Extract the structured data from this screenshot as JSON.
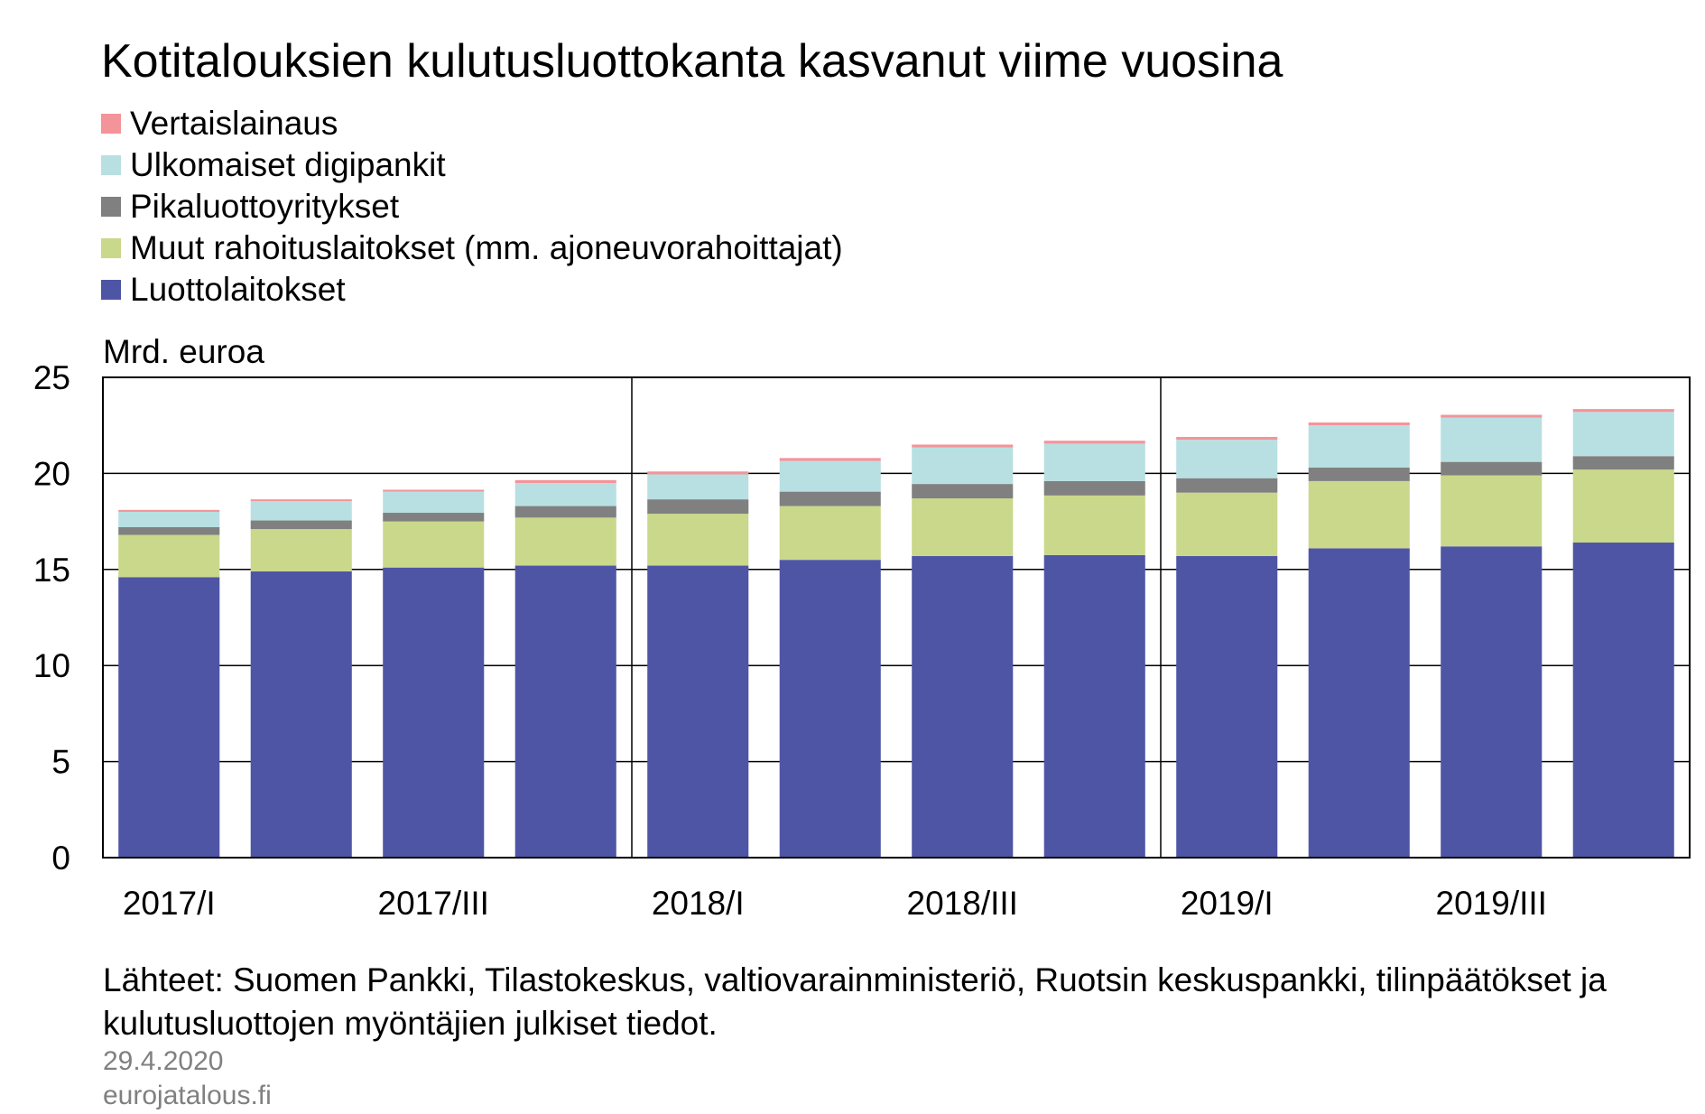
{
  "chart_data": {
    "type": "bar",
    "stacked": true,
    "title": "Kotitalouksien kulutusluottokanta kasvanut viime vuosina",
    "ylabel": "Mrd. euroa",
    "xlabel": "",
    "ylim": [
      0,
      25
    ],
    "yticks": [
      0,
      5,
      10,
      15,
      20,
      25
    ],
    "grid": "horizontal",
    "legend_placement": "top-left",
    "categories": [
      "2017/I",
      "2017/II",
      "2017/III",
      "2017/IV",
      "2018/I",
      "2018/II",
      "2018/III",
      "2018/IV",
      "2019/I",
      "2019/II",
      "2019/III",
      "2019/IV"
    ],
    "x_tick_labels": [
      "2017/I",
      "2017/III",
      "2018/I",
      "2018/III",
      "2019/I",
      "2019/III"
    ],
    "series": [
      {
        "name": "Luottolaitokset",
        "color": "#4f55a5",
        "values": [
          14.6,
          14.9,
          15.1,
          15.2,
          15.2,
          15.5,
          15.7,
          15.75,
          15.7,
          16.1,
          16.2,
          16.4
        ]
      },
      {
        "name": "Muut rahoituslaitokset (mm. ajoneuvorahoittajat)",
        "color": "#c9d88a",
        "values": [
          2.2,
          2.2,
          2.4,
          2.5,
          2.7,
          2.8,
          3.0,
          3.1,
          3.3,
          3.5,
          3.7,
          3.8
        ]
      },
      {
        "name": "Pikaluottoyritykset",
        "color": "#808080",
        "values": [
          0.4,
          0.45,
          0.45,
          0.6,
          0.75,
          0.75,
          0.75,
          0.75,
          0.75,
          0.7,
          0.7,
          0.7
        ]
      },
      {
        "name": "Ulkomaiset digipankit",
        "color": "#b8e0e2",
        "values": [
          0.8,
          1.0,
          1.1,
          1.2,
          1.3,
          1.6,
          1.9,
          1.95,
          2.0,
          2.2,
          2.3,
          2.3
        ]
      },
      {
        "name": "Vertaislainaus",
        "color": "#f3949a",
        "values": [
          0.1,
          0.1,
          0.1,
          0.15,
          0.15,
          0.15,
          0.15,
          0.15,
          0.15,
          0.15,
          0.15,
          0.15
        ]
      }
    ],
    "legend_order": [
      "Vertaislainaus",
      "Ulkomaiset digipankit",
      "Pikaluottoyritykset",
      "Muut rahoituslaitokset (mm. ajoneuvorahoittajat)",
      "Luottolaitokset"
    ]
  },
  "footer": {
    "source": "Lähteet: Suomen Pankki, Tilastokeskus, valtiovarainministeriö, Ruotsin keskuspankki, tilinpäätökset ja kulutusluottojen myöntäjien julkiset tiedot.",
    "date": "29.4.2020",
    "site": "eurojatalous.fi"
  }
}
